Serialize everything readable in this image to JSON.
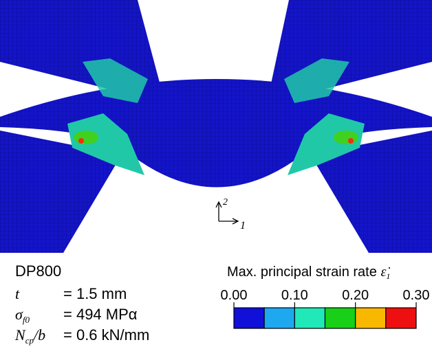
{
  "material": "DP800",
  "parameters": [
    {
      "symbol": "t",
      "subscript": null,
      "divisor": null,
      "value": "= 1.5 mm"
    },
    {
      "symbol": "σ",
      "subscript": "f0",
      "divisor": null,
      "value": "= 494 MPα"
    },
    {
      "symbol": "N",
      "subscript": "cp",
      "divisor": "/b",
      "value": "= 0.6 kN/mm"
    }
  ],
  "colorbar": {
    "title": "Max. principal strain rate",
    "symbol": "ε̇",
    "symbol_subscript": "1",
    "tick_labels": [
      "0.00",
      "0.10",
      "0.20",
      "0.30"
    ],
    "colors": [
      "#1010d8",
      "#1ea8f0",
      "#20e8b8",
      "#18d018",
      "#f8b800",
      "#ee1010"
    ]
  },
  "axes": {
    "vertical": "2",
    "horizontal": "1"
  }
}
